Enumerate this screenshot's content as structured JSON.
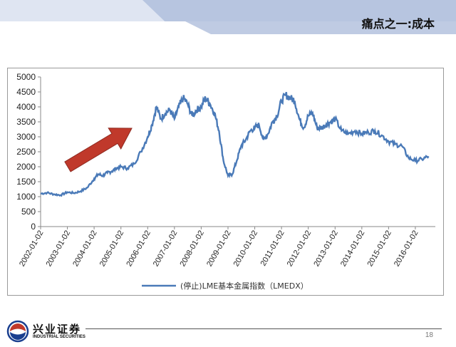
{
  "slide": {
    "title": "痛点之一:成本",
    "page_number": "18"
  },
  "logo": {
    "name_cn": "兴业证券",
    "name_en": "INDUSTRIAL SECURITIES"
  },
  "colors": {
    "series_line": "#4a7ab8",
    "arrow": "#c0392b",
    "header_band_light": "#dfe5f2",
    "header_band_dark": "#aab9d9"
  },
  "chart_data": {
    "type": "line",
    "title": "",
    "xlabel": "",
    "ylabel": "",
    "ylim": [
      0,
      5000
    ],
    "yticks": [
      0,
      500,
      1000,
      1500,
      2000,
      2500,
      3000,
      3500,
      4000,
      4500,
      5000
    ],
    "xticks": [
      "2002-01-02",
      "2003-01-02",
      "2004-01-02",
      "2005-01-02",
      "2006-01-02",
      "2007-01-02",
      "2008-01-02",
      "2009-01-02",
      "2010-01-02",
      "2011-01-02",
      "2012-01-02",
      "2013-01-02",
      "2014-01-02",
      "2015-01-02",
      "2016-01-02"
    ],
    "grid": false,
    "legend_position": "bottom",
    "annotation": "upward-arrow",
    "series": [
      {
        "name": "(停止)LME基本金属指数（LMEDX）",
        "x": [
          "2002-01-02",
          "2002-04-01",
          "2002-07-01",
          "2002-10-01",
          "2003-01-02",
          "2003-04-01",
          "2003-07-01",
          "2003-10-01",
          "2004-01-02",
          "2004-03-01",
          "2004-05-01",
          "2004-07-01",
          "2004-09-01",
          "2004-11-01",
          "2005-01-02",
          "2005-04-01",
          "2005-07-01",
          "2005-10-01",
          "2006-01-02",
          "2006-03-01",
          "2006-05-01",
          "2006-07-01",
          "2006-09-01",
          "2006-11-01",
          "2007-01-02",
          "2007-03-01",
          "2007-05-01",
          "2007-07-01",
          "2007-09-01",
          "2007-11-01",
          "2008-01-02",
          "2008-03-01",
          "2008-05-01",
          "2008-07-01",
          "2008-09-01",
          "2008-11-01",
          "2009-01-02",
          "2009-03-01",
          "2009-05-01",
          "2009-07-01",
          "2009-09-01",
          "2009-11-01",
          "2010-01-02",
          "2010-03-01",
          "2010-05-01",
          "2010-07-01",
          "2010-09-01",
          "2010-11-01",
          "2011-01-02",
          "2011-03-01",
          "2011-05-01",
          "2011-07-01",
          "2011-09-01",
          "2011-11-01",
          "2012-01-02",
          "2012-03-01",
          "2012-05-01",
          "2012-07-01",
          "2012-09-01",
          "2012-11-01",
          "2013-01-02",
          "2013-04-01",
          "2013-07-01",
          "2013-10-01",
          "2014-01-02",
          "2014-04-01",
          "2014-07-01",
          "2014-10-01",
          "2015-01-02",
          "2015-04-01",
          "2015-07-01",
          "2015-10-01",
          "2016-01-02",
          "2016-04-01",
          "2016-07-01"
        ],
        "values": [
          1100,
          1130,
          1080,
          1050,
          1150,
          1120,
          1180,
          1300,
          1600,
          1750,
          1700,
          1800,
          1850,
          1950,
          2000,
          1950,
          2100,
          2500,
          3000,
          3400,
          4000,
          3600,
          3800,
          3900,
          3600,
          4000,
          4300,
          4100,
          3700,
          3900,
          4000,
          4300,
          4100,
          3800,
          3200,
          2200,
          1700,
          1750,
          2200,
          2700,
          2900,
          3200,
          3300,
          3400,
          2900,
          3100,
          3500,
          3700,
          4200,
          4400,
          4300,
          4200,
          3600,
          3300,
          3700,
          3800,
          3300,
          3300,
          3400,
          3500,
          3600,
          3200,
          3100,
          3200,
          3100,
          3150,
          3200,
          3050,
          2850,
          2750,
          2700,
          2300,
          2200,
          2250,
          2350
        ]
      }
    ]
  }
}
